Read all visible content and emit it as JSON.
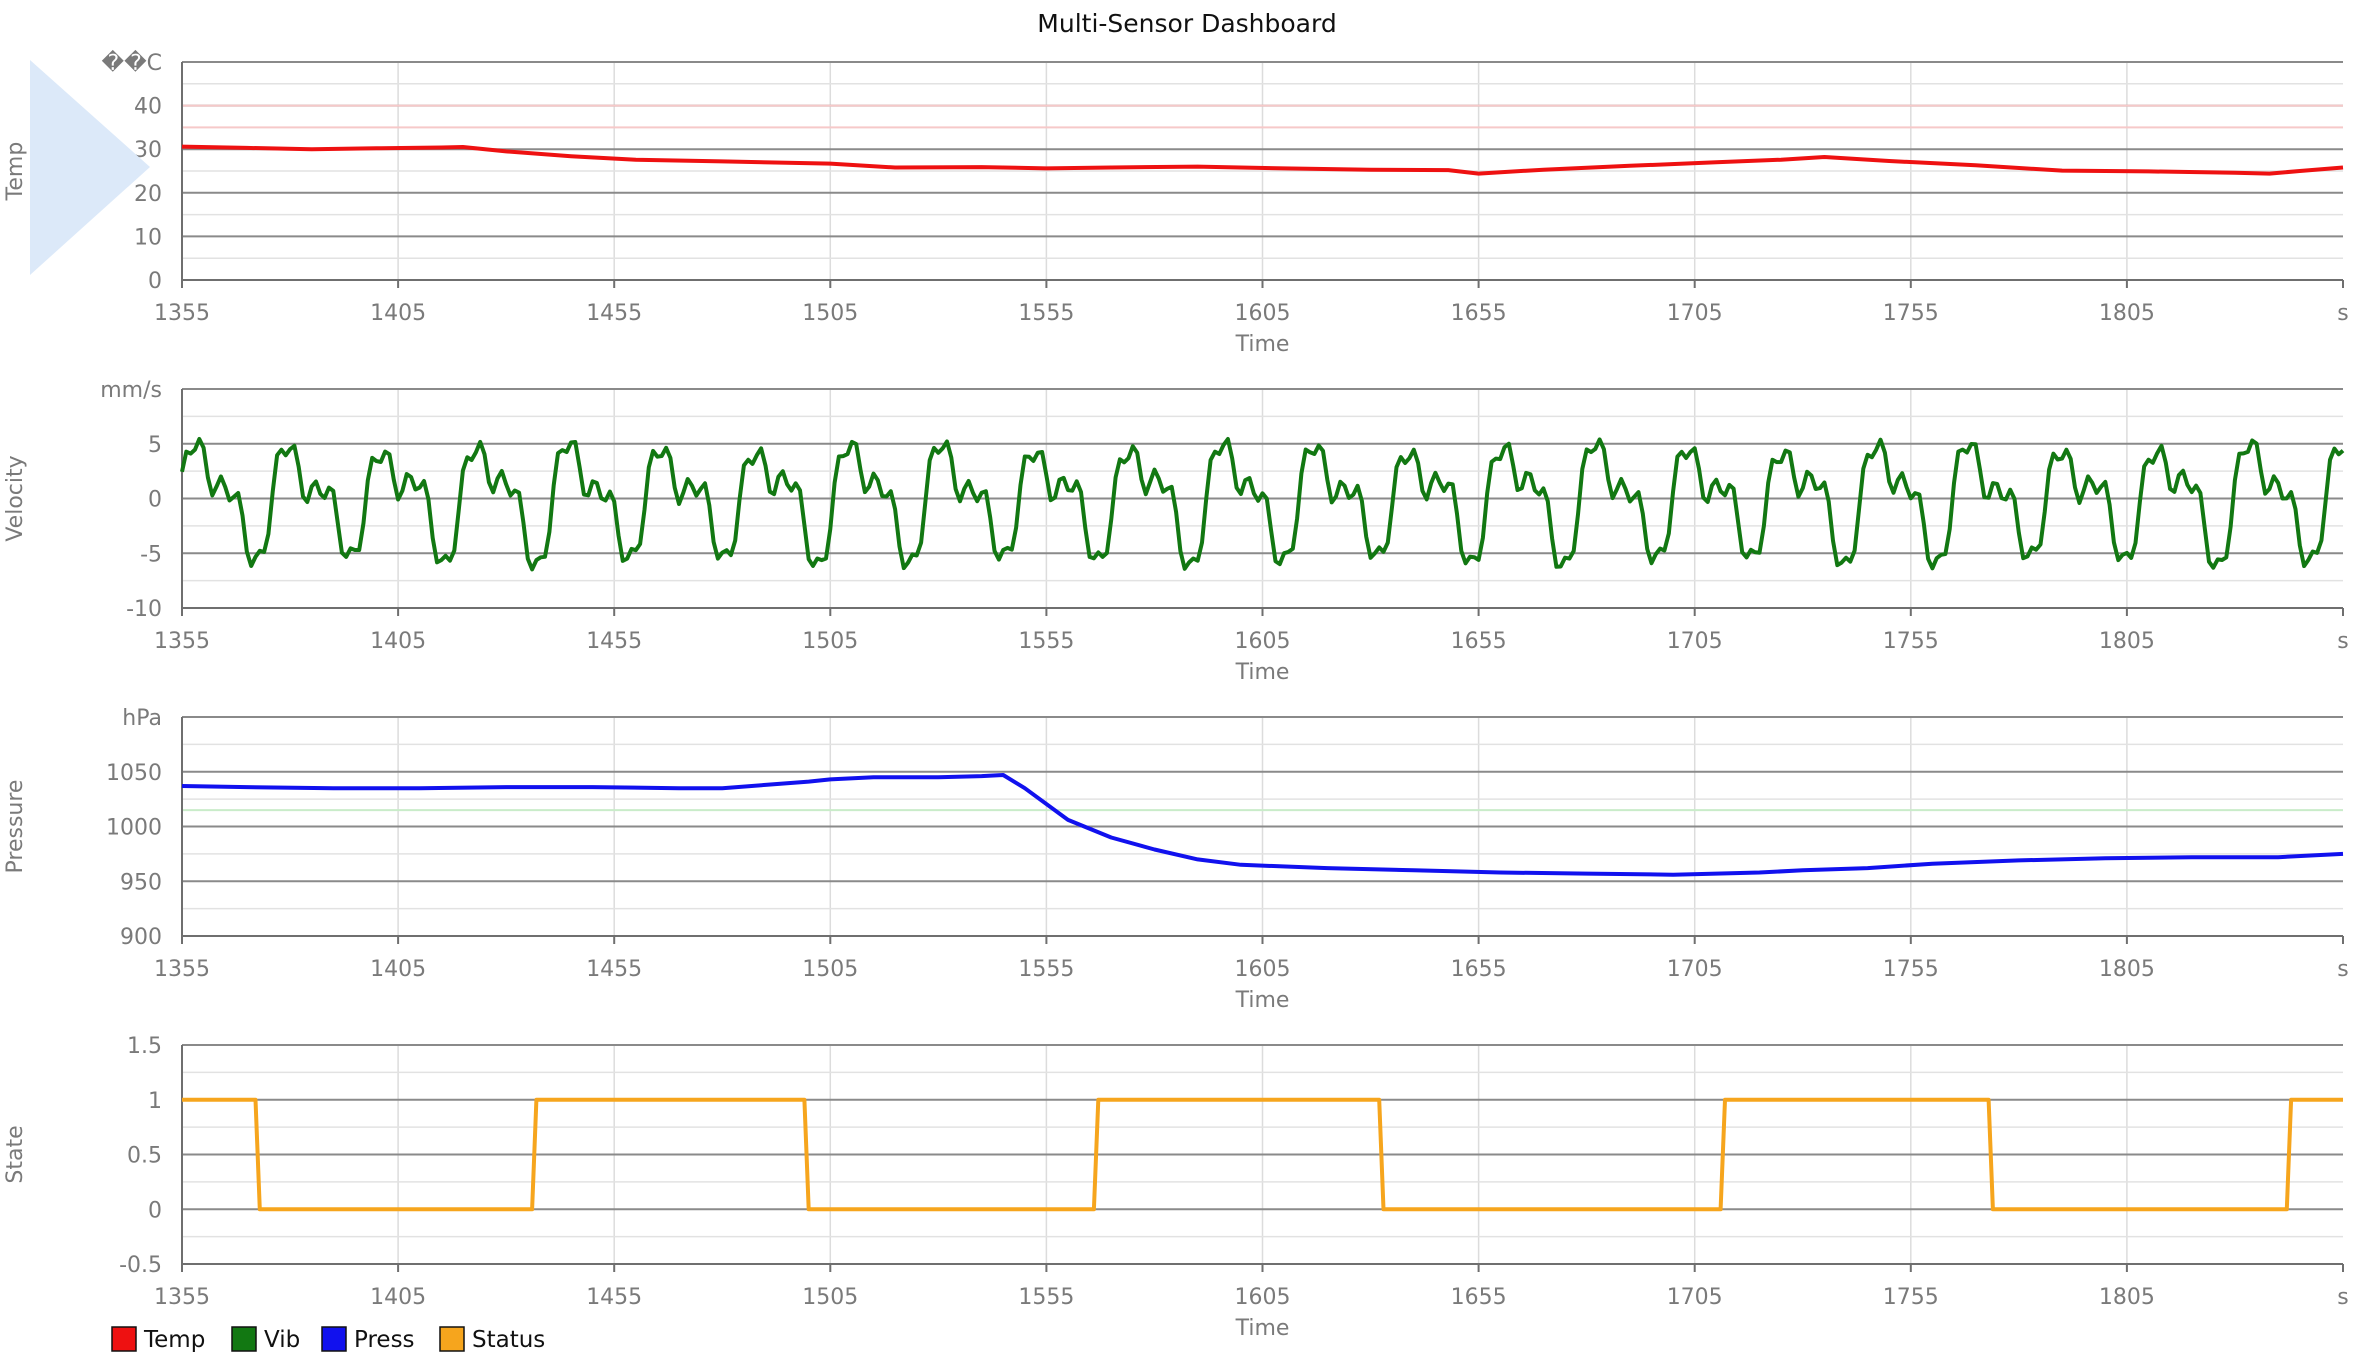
{
  "title": "Multi-Sensor Dashboard",
  "colors": {
    "temp": "#ee1111",
    "vib": "#127812",
    "press": "#1111ee",
    "status": "#f6a51d",
    "temp_ref": "#f6c9c9",
    "press_ref": "#c9ecc9",
    "play_overlay": "#dce9f9"
  },
  "x_ticks": [
    "1355",
    "1405",
    "1455",
    "1505",
    "1555",
    "1605",
    "1655",
    "1705",
    "1755",
    "1805"
  ],
  "x_unit": "s",
  "x_label": "Time",
  "legend": [
    {
      "name": "Temp",
      "color": "#ee1111"
    },
    {
      "name": "Vib",
      "color": "#127812"
    },
    {
      "name": "Press",
      "color": "#1111ee"
    },
    {
      "name": "Status",
      "color": "#f6a51d"
    }
  ],
  "chart_data": [
    {
      "type": "line",
      "ylabel": "Temp",
      "unit": "��C",
      "xlabel": "Time",
      "xlim": [
        1355,
        1855
      ],
      "ylim": [
        0,
        50
      ],
      "yticks": [
        "0",
        "10",
        "20",
        "30",
        "40"
      ],
      "series": [
        {
          "name": "Temp",
          "color": "#ee1111",
          "x": [
            1355,
            1370,
            1385,
            1400,
            1415,
            1420,
            1430,
            1445,
            1460,
            1480,
            1505,
            1520,
            1540,
            1555,
            1570,
            1590,
            1610,
            1630,
            1648,
            1655,
            1670,
            1690,
            1710,
            1725,
            1735,
            1750,
            1770,
            1790,
            1810,
            1830,
            1838,
            1845,
            1855
          ],
          "y": [
            30.6,
            30.3,
            30.0,
            30.2,
            30.4,
            30.5,
            29.5,
            28.4,
            27.6,
            27.2,
            26.7,
            25.8,
            25.9,
            25.6,
            25.8,
            26.0,
            25.6,
            25.3,
            25.2,
            24.4,
            25.3,
            26.2,
            27.0,
            27.6,
            28.2,
            27.3,
            26.3,
            25.1,
            24.9,
            24.6,
            24.4,
            25.0,
            25.8
          ]
        }
      ],
      "reference_lines": [
        40,
        35
      ]
    },
    {
      "type": "line",
      "ylabel": "Velocity",
      "unit": "mm/s",
      "xlabel": "Time",
      "xlim": [
        1355,
        1855
      ],
      "ylim": [
        -10,
        10
      ],
      "yticks": [
        "-10",
        "-5",
        "0",
        "5"
      ],
      "series": [
        {
          "name": "Vib",
          "color": "#127812",
          "period": 21.6,
          "amplitude": 6.5
        }
      ]
    },
    {
      "type": "line",
      "ylabel": "Pressure",
      "unit": "hPa",
      "xlabel": "Time",
      "xlim": [
        1355,
        1855
      ],
      "ylim": [
        900,
        1100
      ],
      "yticks": [
        "900",
        "950",
        "1000",
        "1050"
      ],
      "series": [
        {
          "name": "Press",
          "color": "#1111ee",
          "x": [
            1355,
            1370,
            1390,
            1410,
            1430,
            1450,
            1470,
            1480,
            1490,
            1500,
            1505,
            1515,
            1530,
            1540,
            1545,
            1550,
            1560,
            1570,
            1580,
            1590,
            1600,
            1620,
            1640,
            1660,
            1680,
            1700,
            1720,
            1730,
            1745,
            1760,
            1780,
            1800,
            1820,
            1840,
            1855
          ],
          "y": [
            1037,
            1036,
            1035,
            1035,
            1036,
            1036,
            1035,
            1035,
            1038,
            1041,
            1043,
            1045,
            1045,
            1046,
            1047,
            1035,
            1006,
            990,
            979,
            970,
            965,
            962,
            960,
            958,
            957,
            956,
            958,
            960,
            962,
            966,
            969,
            971,
            972,
            972,
            975
          ]
        }
      ],
      "reference_lines": [
        1015
      ]
    },
    {
      "type": "line",
      "ylabel": "State",
      "unit": "",
      "xlabel": "Time",
      "xlim": [
        1355,
        1855
      ],
      "ylim": [
        -0.5,
        1.5
      ],
      "yticks": [
        "-0.5",
        "0",
        "0.5",
        "1",
        "1.5"
      ],
      "series": [
        {
          "name": "Status",
          "color": "#f6a51d",
          "x": [
            1355,
            1372,
            1373,
            1436,
            1437,
            1499,
            1500,
            1566,
            1567,
            1632,
            1633,
            1711,
            1712,
            1773,
            1774,
            1842,
            1843,
            1855
          ],
          "y": [
            1,
            1,
            0,
            0,
            1,
            1,
            0,
            0,
            1,
            1,
            0,
            0,
            1,
            1,
            0,
            0,
            1,
            1
          ]
        }
      ]
    }
  ]
}
